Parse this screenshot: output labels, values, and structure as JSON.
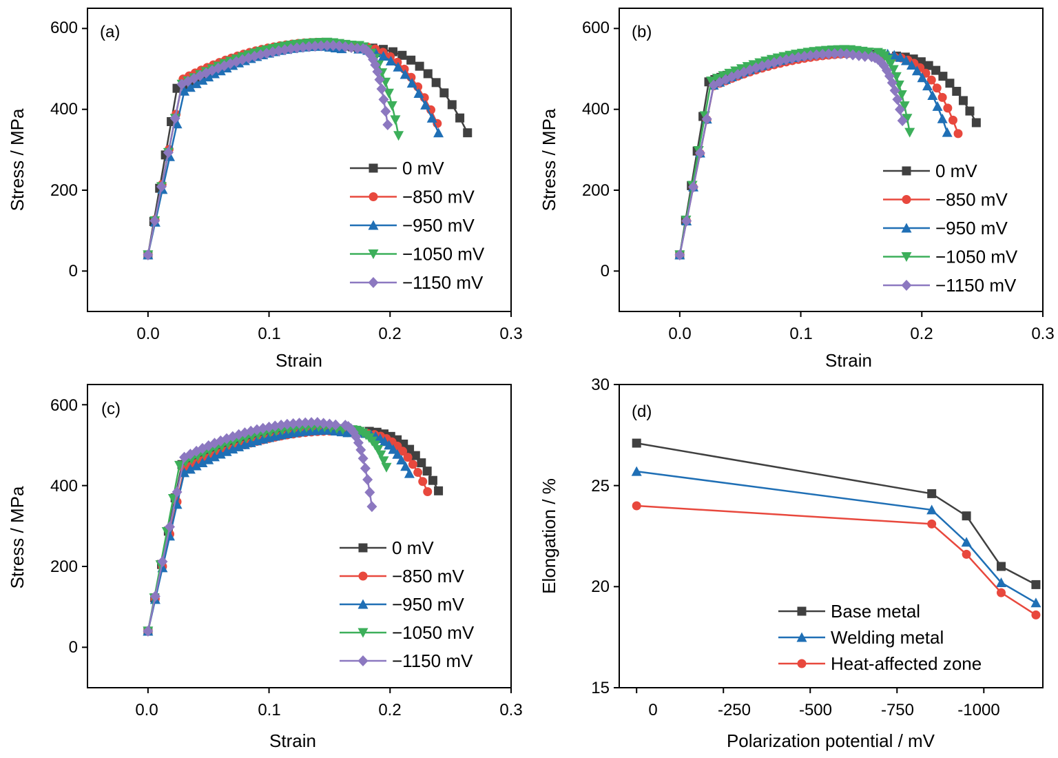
{
  "figure": {
    "panels": [
      {
        "id": "a",
        "tag": "(a)",
        "xlabel": "Strain",
        "ylabel": "Stress / MPa",
        "xticks": [
          "0.0",
          "0.1",
          "0.2",
          "0.3"
        ],
        "yticks": [
          "0",
          "200",
          "400",
          "600"
        ]
      },
      {
        "id": "b",
        "tag": "(b)",
        "xlabel": "Strain",
        "ylabel": "Stress / MPa",
        "xticks": [
          "0.0",
          "0.1",
          "0.2",
          "0.3"
        ],
        "yticks": [
          "0",
          "200",
          "400",
          "600"
        ]
      },
      {
        "id": "c",
        "tag": "(c)",
        "xlabel": "Strain",
        "ylabel": "Stress / MPa",
        "xticks": [
          "0.0",
          "0.1",
          "0.2",
          "0.3"
        ],
        "yticks": [
          "0",
          "200",
          "400",
          "600"
        ]
      },
      {
        "id": "d",
        "tag": "(d)",
        "xlabel": "Polarization potential / mV",
        "ylabel": "Elongation / %",
        "xticks": [
          "0",
          "-250",
          "-500",
          "-750",
          "-1000"
        ],
        "yticks": [
          "15",
          "20",
          "25",
          "30"
        ]
      }
    ]
  },
  "chart_data": [
    {
      "type": "line",
      "panel": "(a)",
      "xlabel": "Strain",
      "ylabel": "Stress / MPa",
      "xlim": [
        -0.05,
        0.3
      ],
      "ylim": [
        -100,
        650
      ],
      "legend_position": "center-right",
      "series": [
        {
          "name": "0 mV",
          "color": "#404040",
          "marker": "square",
          "peak": 560,
          "yield": 452,
          "yield_strain": 0.024,
          "fracture": [
            0.264,
            342
          ],
          "drop_start": 0.175
        },
        {
          "name": "−850 mV",
          "color": "#e8483d",
          "marker": "circle",
          "peak": 566,
          "yield": 475,
          "yield_strain": 0.029,
          "fracture": [
            0.239,
            365
          ],
          "drop_start": 0.165
        },
        {
          "name": "−950 mV",
          "color": "#1f6fb5",
          "marker": "triangle-up",
          "peak": 556,
          "yield": 445,
          "yield_strain": 0.03,
          "fracture": [
            0.24,
            342
          ],
          "drop_start": 0.165
        },
        {
          "name": "−1050 mV",
          "color": "#3caf5a",
          "marker": "triangle-down",
          "peak": 566,
          "yield": 462,
          "yield_strain": 0.028,
          "fracture": [
            0.207,
            335
          ],
          "drop_start": 0.17
        },
        {
          "name": "−1150 mV",
          "color": "#8c78c0",
          "marker": "diamond",
          "peak": 558,
          "yield": 462,
          "yield_strain": 0.028,
          "fracture": [
            0.198,
            362
          ],
          "drop_start": 0.175
        }
      ]
    },
    {
      "type": "line",
      "panel": "(b)",
      "xlabel": "Strain",
      "ylabel": "Stress / MPa",
      "xlim": [
        -0.05,
        0.3
      ],
      "ylim": [
        -100,
        650
      ],
      "legend_position": "center-right",
      "series": [
        {
          "name": "0 mV",
          "color": "#404040",
          "marker": "square",
          "peak": 540,
          "yield": 468,
          "yield_strain": 0.024,
          "fracture": [
            0.245,
            367
          ],
          "drop_start": 0.17
        },
        {
          "name": "−850 mV",
          "color": "#e8483d",
          "marker": "circle",
          "peak": 538,
          "yield": 458,
          "yield_strain": 0.028,
          "fracture": [
            0.23,
            340
          ],
          "drop_start": 0.17
        },
        {
          "name": "−950 mV",
          "color": "#1f6fb5",
          "marker": "triangle-up",
          "peak": 545,
          "yield": 460,
          "yield_strain": 0.028,
          "fracture": [
            0.221,
            343
          ],
          "drop_start": 0.165
        },
        {
          "name": "−1050 mV",
          "color": "#3caf5a",
          "marker": "triangle-down",
          "peak": 548,
          "yield": 470,
          "yield_strain": 0.026,
          "fracture": [
            0.19,
            343
          ],
          "drop_start": 0.16
        },
        {
          "name": "−1150 mV",
          "color": "#8c78c0",
          "marker": "diamond",
          "peak": 538,
          "yield": 460,
          "yield_strain": 0.028,
          "fracture": [
            0.184,
            372
          ],
          "drop_start": 0.155
        }
      ]
    },
    {
      "type": "line",
      "panel": "(c)",
      "xlabel": "Strain",
      "ylabel": "Stress / MPa",
      "xlim": [
        -0.05,
        0.3
      ],
      "ylim": [
        -100,
        650
      ],
      "legend_position": "lower-right",
      "series": [
        {
          "name": "0 mV",
          "color": "#404040",
          "marker": "square",
          "peak": 542,
          "yield": 452,
          "yield_strain": 0.028,
          "fracture": [
            0.24,
            387
          ],
          "drop_start": 0.175
        },
        {
          "name": "−850 mV",
          "color": "#e8483d",
          "marker": "circle",
          "peak": 535,
          "yield": 440,
          "yield_strain": 0.03,
          "fracture": [
            0.231,
            385
          ],
          "drop_start": 0.175
        },
        {
          "name": "−950 mV",
          "color": "#1f6fb5",
          "marker": "triangle-up",
          "peak": 537,
          "yield": 432,
          "yield_strain": 0.03,
          "fracture": [
            0.216,
            430
          ],
          "drop_start": 0.17
        },
        {
          "name": "−1050 mV",
          "color": "#3caf5a",
          "marker": "triangle-down",
          "peak": 545,
          "yield": 450,
          "yield_strain": 0.026,
          "fracture": [
            0.197,
            445
          ],
          "drop_start": 0.165
        },
        {
          "name": "−1150 mV",
          "color": "#8c78c0",
          "marker": "diamond",
          "peak": 556,
          "yield": 470,
          "yield_strain": 0.03,
          "fracture": [
            0.185,
            348
          ],
          "drop_start": 0.16
        }
      ]
    },
    {
      "type": "line",
      "panel": "(d)",
      "xlabel": "Polarization potential / mV",
      "ylabel": "Elongation / %",
      "xlim": [
        50,
        -1170
      ],
      "ylim": [
        15,
        30
      ],
      "legend_position": "bottom-right",
      "x": [
        0,
        -850,
        -950,
        -1050,
        -1150
      ],
      "series": [
        {
          "name": "Base metal",
          "color": "#404040",
          "marker": "square",
          "values": [
            27.1,
            24.6,
            23.5,
            21.0,
            20.1
          ]
        },
        {
          "name": "Welding metal",
          "color": "#1f6fb5",
          "marker": "triangle-up",
          "values": [
            25.7,
            23.8,
            22.2,
            20.2,
            19.2
          ]
        },
        {
          "name": "Heat-affected zone",
          "color": "#e8483d",
          "marker": "circle",
          "values": [
            24.0,
            23.1,
            21.6,
            19.7,
            18.6
          ]
        }
      ]
    }
  ]
}
